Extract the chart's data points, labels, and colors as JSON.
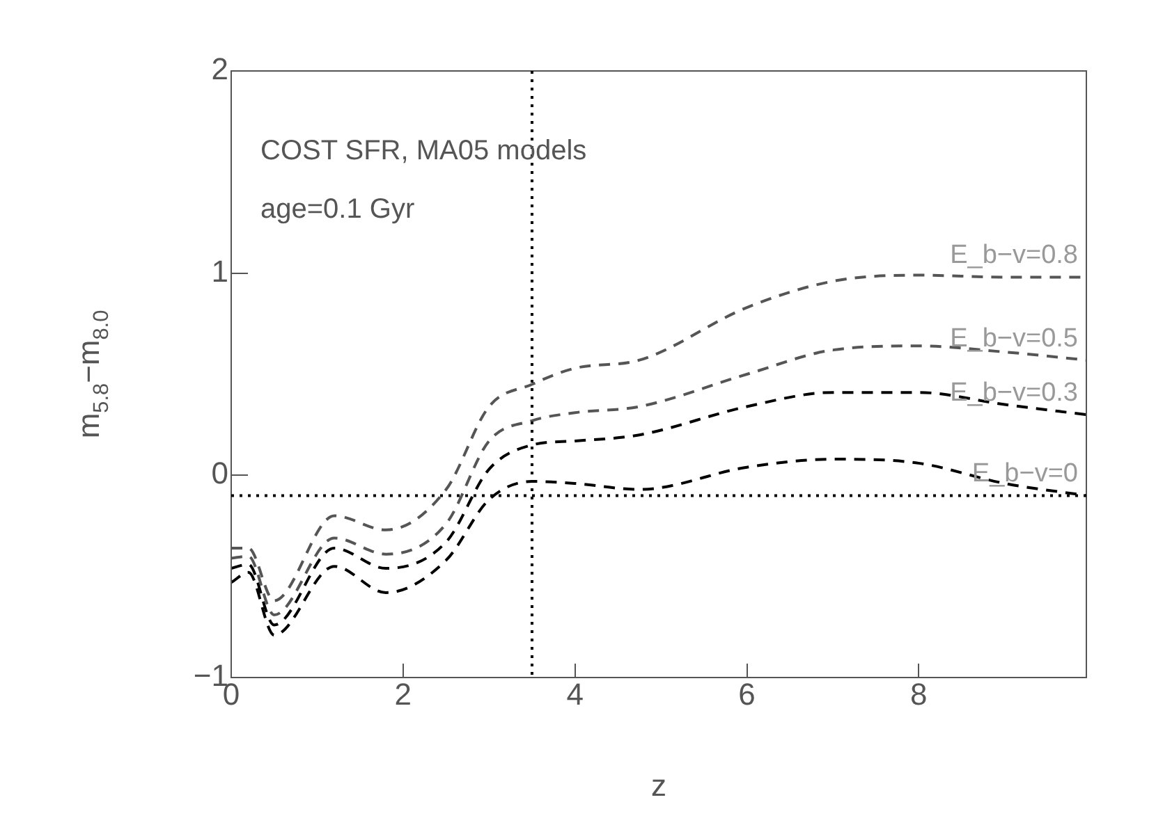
{
  "chart_data": {
    "type": "line",
    "xlabel": "z",
    "ylabel": "m$_{5.8}$−m$_{8.0}$",
    "annotations": [
      "COST SFR, MA05 models",
      "age=0.1 Gyr"
    ],
    "xlim": [
      0,
      9.95
    ],
    "xticks": [
      0,
      2,
      4,
      6,
      8
    ],
    "ylim": [
      -1,
      2
    ],
    "yticks": [
      {
        "value": -1,
        "label": "−1"
      },
      0,
      1,
      2
    ],
    "grid": false,
    "legend": false,
    "line_style": "dashed",
    "ref_lines": [
      {
        "axis": "x",
        "value": 3.5,
        "label": null,
        "color": "#000000",
        "line_style": "dotted"
      },
      {
        "axis": "y",
        "value": -0.1,
        "label": null,
        "color": "#000000",
        "line_style": "dotted"
      }
    ],
    "x": [
      0,
      0.2,
      0.5,
      1.2,
      1.8,
      2.5,
      3,
      3.5,
      4,
      4.75,
      6,
      7,
      8,
      9,
      9.95
    ],
    "series": [
      {
        "name": "E_b−v=0.8",
        "color": "#555555",
        "values": [
          -0.36,
          -0.36,
          -0.62,
          -0.2,
          -0.27,
          -0.07,
          0.34,
          0.45,
          0.53,
          0.57,
          0.83,
          0.96,
          0.99,
          0.98,
          0.98
        ]
      },
      {
        "name": "E_b−v=0.5",
        "color": "#555555",
        "values": [
          -0.41,
          -0.4,
          -0.69,
          -0.31,
          -0.39,
          -0.24,
          0.17,
          0.27,
          0.31,
          0.34,
          0.5,
          0.62,
          0.64,
          0.61,
          0.57
        ]
      },
      {
        "name": "E_b−v=0.3",
        "color": "#000000",
        "values": [
          -0.46,
          -0.44,
          -0.74,
          -0.36,
          -0.46,
          -0.33,
          0.03,
          0.15,
          0.17,
          0.2,
          0.34,
          0.41,
          0.41,
          0.35,
          0.3
        ]
      },
      {
        "name": "E_b−v=0",
        "color": "#000000",
        "values": [
          -0.53,
          -0.48,
          -0.79,
          -0.45,
          -0.58,
          -0.42,
          -0.12,
          -0.03,
          -0.04,
          -0.07,
          0.04,
          0.08,
          0.06,
          -0.04,
          -0.1
        ]
      }
    ]
  }
}
